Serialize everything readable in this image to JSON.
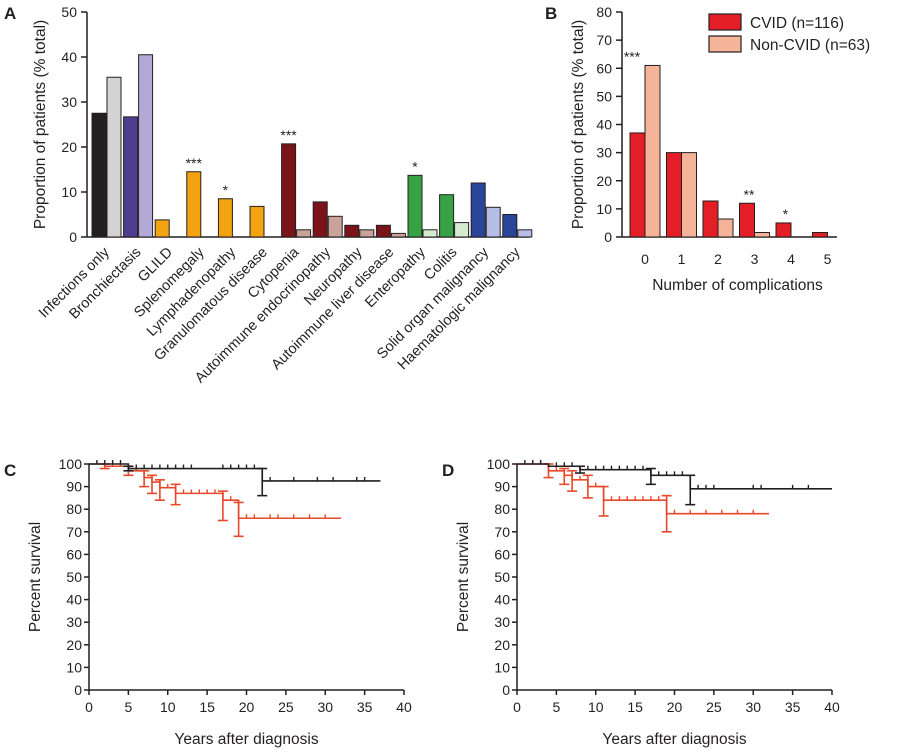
{
  "chart_data": [
    {
      "panel": "A",
      "type": "bar",
      "ylabel": "Proportion of patients (% total)",
      "ylim": [
        0,
        50
      ],
      "yticks": [
        0,
        10,
        20,
        30,
        40,
        50
      ],
      "grid": false,
      "categories": [
        {
          "label": "Infections only",
          "cvid": 27.5,
          "noncvid": 35.5,
          "sig": "",
          "color": "#231f20",
          "color_light": "#d3d3d3"
        },
        {
          "label": "Bronchiectasis",
          "cvid": 26.7,
          "noncvid": 40.5,
          "sig": "",
          "color": "#4f3d8f",
          "color_light": "#b3a9d9"
        },
        {
          "label": "GLILD",
          "cvid": 3.8,
          "noncvid": null,
          "sig": "",
          "color": "#f2a30f",
          "color_light": "#fde3b0"
        },
        {
          "label": "Splenomegaly",
          "cvid": 14.5,
          "noncvid": null,
          "sig": "***",
          "color": "#f2a30f",
          "color_light": "#fde3b0"
        },
        {
          "label": "Lymphadenopathy",
          "cvid": 8.5,
          "noncvid": null,
          "sig": "*",
          "color": "#f2a30f",
          "color_light": "#fde3b0"
        },
        {
          "label": "Granulomatous disease",
          "cvid": 6.8,
          "noncvid": null,
          "sig": "",
          "color": "#f2a30f",
          "color_light": "#fde3b0"
        },
        {
          "label": "Cytopenia",
          "cvid": 20.7,
          "noncvid": 1.6,
          "sig": "***",
          "color": "#7a1418",
          "color_light": "#c9a299"
        },
        {
          "label": "Autoimmune endocrinopathy",
          "cvid": 7.8,
          "noncvid": 4.6,
          "sig": "",
          "color": "#7a1418",
          "color_light": "#c9a299"
        },
        {
          "label": "Neuropathy",
          "cvid": 2.6,
          "noncvid": 1.6,
          "sig": "",
          "color": "#7a1418",
          "color_light": "#c9a299"
        },
        {
          "label": "Autoimmune liver disease",
          "cvid": 2.6,
          "noncvid": 0.8,
          "sig": "",
          "color": "#7a1418",
          "color_light": "#c9a299"
        },
        {
          "label": "Enteropathy",
          "cvid": 13.7,
          "noncvid": 1.6,
          "sig": "*",
          "color": "#37a243",
          "color_light": "#d4ecd0"
        },
        {
          "label": "Colitis",
          "cvid": 9.4,
          "noncvid": 3.2,
          "sig": "",
          "color": "#37a243",
          "color_light": "#d4ecd0"
        },
        {
          "label": "Solid organ malignancy",
          "cvid": 12.0,
          "noncvid": 6.6,
          "sig": "",
          "color": "#29469a",
          "color_light": "#b6bde6"
        },
        {
          "label": "Haematologic malignancy",
          "cvid": 5.0,
          "noncvid": 1.6,
          "sig": "",
          "color": "#29469a",
          "color_light": "#b6bde6"
        }
      ]
    },
    {
      "panel": "B",
      "type": "bar",
      "xlabel": "Number of complications",
      "ylabel": "Proportion of patients (% total)",
      "ylim": [
        0,
        80
      ],
      "yticks": [
        0,
        10,
        20,
        30,
        40,
        50,
        60,
        70,
        80
      ],
      "grid": false,
      "categories": [
        "0",
        "1",
        "2",
        "3",
        "4",
        "5"
      ],
      "series": [
        {
          "name": "CVID (n=116)",
          "color": "#e41e26",
          "values": [
            37,
            30,
            12.8,
            12,
            5,
            1.6
          ]
        },
        {
          "name": "Non-CVID (n=63)",
          "color": "#f5b39a",
          "values": [
            61,
            30,
            6.4,
            1.6,
            0,
            0
          ]
        }
      ],
      "sig": [
        "***",
        "",
        "",
        "**",
        "*",
        ""
      ],
      "legend_position": "top-right"
    },
    {
      "panel": "C",
      "type": "line",
      "subtype": "kaplan-meier",
      "xlabel": "Years after diagnosis",
      "ylabel": "Percent survival",
      "xlim": [
        0,
        40
      ],
      "ylim": [
        0,
        100
      ],
      "xticks": [
        0,
        5,
        10,
        15,
        20,
        25,
        30,
        35,
        40
      ],
      "yticks": [
        0,
        10,
        20,
        30,
        40,
        50,
        60,
        70,
        80,
        90,
        100
      ],
      "series": [
        {
          "name": "black",
          "color": "#231f20",
          "steps": [
            [
              0,
              100
            ],
            [
              5,
              98
            ],
            [
              22,
              92.5
            ],
            [
              37,
              92.5
            ]
          ],
          "errorbars": [
            [
              5,
              97,
              99
            ],
            [
              22,
              86,
              98
            ]
          ],
          "censor": [
            1,
            2,
            3,
            4,
            6,
            7,
            8,
            9,
            10,
            11,
            12,
            13,
            17,
            18,
            19,
            20,
            21,
            23,
            26,
            29,
            31,
            34,
            35
          ]
        },
        {
          "name": "red",
          "color": "#e8492a",
          "steps": [
            [
              0,
              100
            ],
            [
              2,
              99
            ],
            [
              5,
              97
            ],
            [
              7,
              94
            ],
            [
              8,
              92
            ],
            [
              9,
              89.5
            ],
            [
              11,
              87
            ],
            [
              17,
              84
            ],
            [
              19,
              76
            ],
            [
              32,
              76
            ]
          ],
          "errorbars": [
            [
              2,
              98,
              100
            ],
            [
              5,
              95,
              99
            ],
            [
              7,
              90,
              97
            ],
            [
              8,
              87,
              95
            ],
            [
              9,
              84,
              93
            ],
            [
              11,
              82,
              91
            ],
            [
              17,
              75,
              88
            ],
            [
              19,
              68,
              83
            ]
          ],
          "censor": [
            3,
            4,
            6,
            10,
            12,
            13,
            14,
            15,
            16,
            18,
            20,
            21,
            23,
            24,
            26,
            28,
            30
          ]
        }
      ]
    },
    {
      "panel": "D",
      "type": "line",
      "subtype": "kaplan-meier",
      "xlabel": "Years after diagnosis",
      "ylabel": "Percent survival",
      "xlim": [
        0,
        40
      ],
      "ylim": [
        0,
        100
      ],
      "xticks": [
        0,
        5,
        10,
        15,
        20,
        25,
        30,
        35,
        40
      ],
      "yticks": [
        0,
        10,
        20,
        30,
        40,
        50,
        60,
        70,
        80,
        90,
        100
      ],
      "series": [
        {
          "name": "black",
          "color": "#231f20",
          "steps": [
            [
              0,
              100
            ],
            [
              4,
              99
            ],
            [
              8,
              97.5
            ],
            [
              17,
              95
            ],
            [
              22,
              89
            ],
            [
              40,
              89
            ]
          ],
          "errorbars": [
            [
              8,
              96,
              99
            ],
            [
              17,
              91,
              98
            ],
            [
              22,
              82,
              95
            ]
          ],
          "censor": [
            1,
            2,
            3,
            5,
            6,
            7,
            9,
            10,
            11,
            12,
            13,
            14,
            15,
            16,
            18,
            19,
            20,
            21,
            23,
            24,
            25,
            30,
            31,
            35,
            37
          ]
        },
        {
          "name": "red",
          "color": "#e8492a",
          "steps": [
            [
              0,
              100
            ],
            [
              4,
              97
            ],
            [
              6,
              95
            ],
            [
              7,
              93
            ],
            [
              9,
              90
            ],
            [
              11,
              84
            ],
            [
              19,
              78
            ],
            [
              32,
              78
            ]
          ],
          "errorbars": [
            [
              4,
              94,
              100
            ],
            [
              6,
              91,
              98
            ],
            [
              7,
              88,
              97
            ],
            [
              9,
              85,
              95
            ],
            [
              11,
              77,
              90
            ],
            [
              19,
              70,
              86
            ]
          ],
          "censor": [
            2,
            3,
            5,
            8,
            10,
            12,
            13,
            14,
            15,
            16,
            17,
            18,
            20,
            22,
            24,
            26,
            28,
            30
          ]
        }
      ]
    }
  ]
}
